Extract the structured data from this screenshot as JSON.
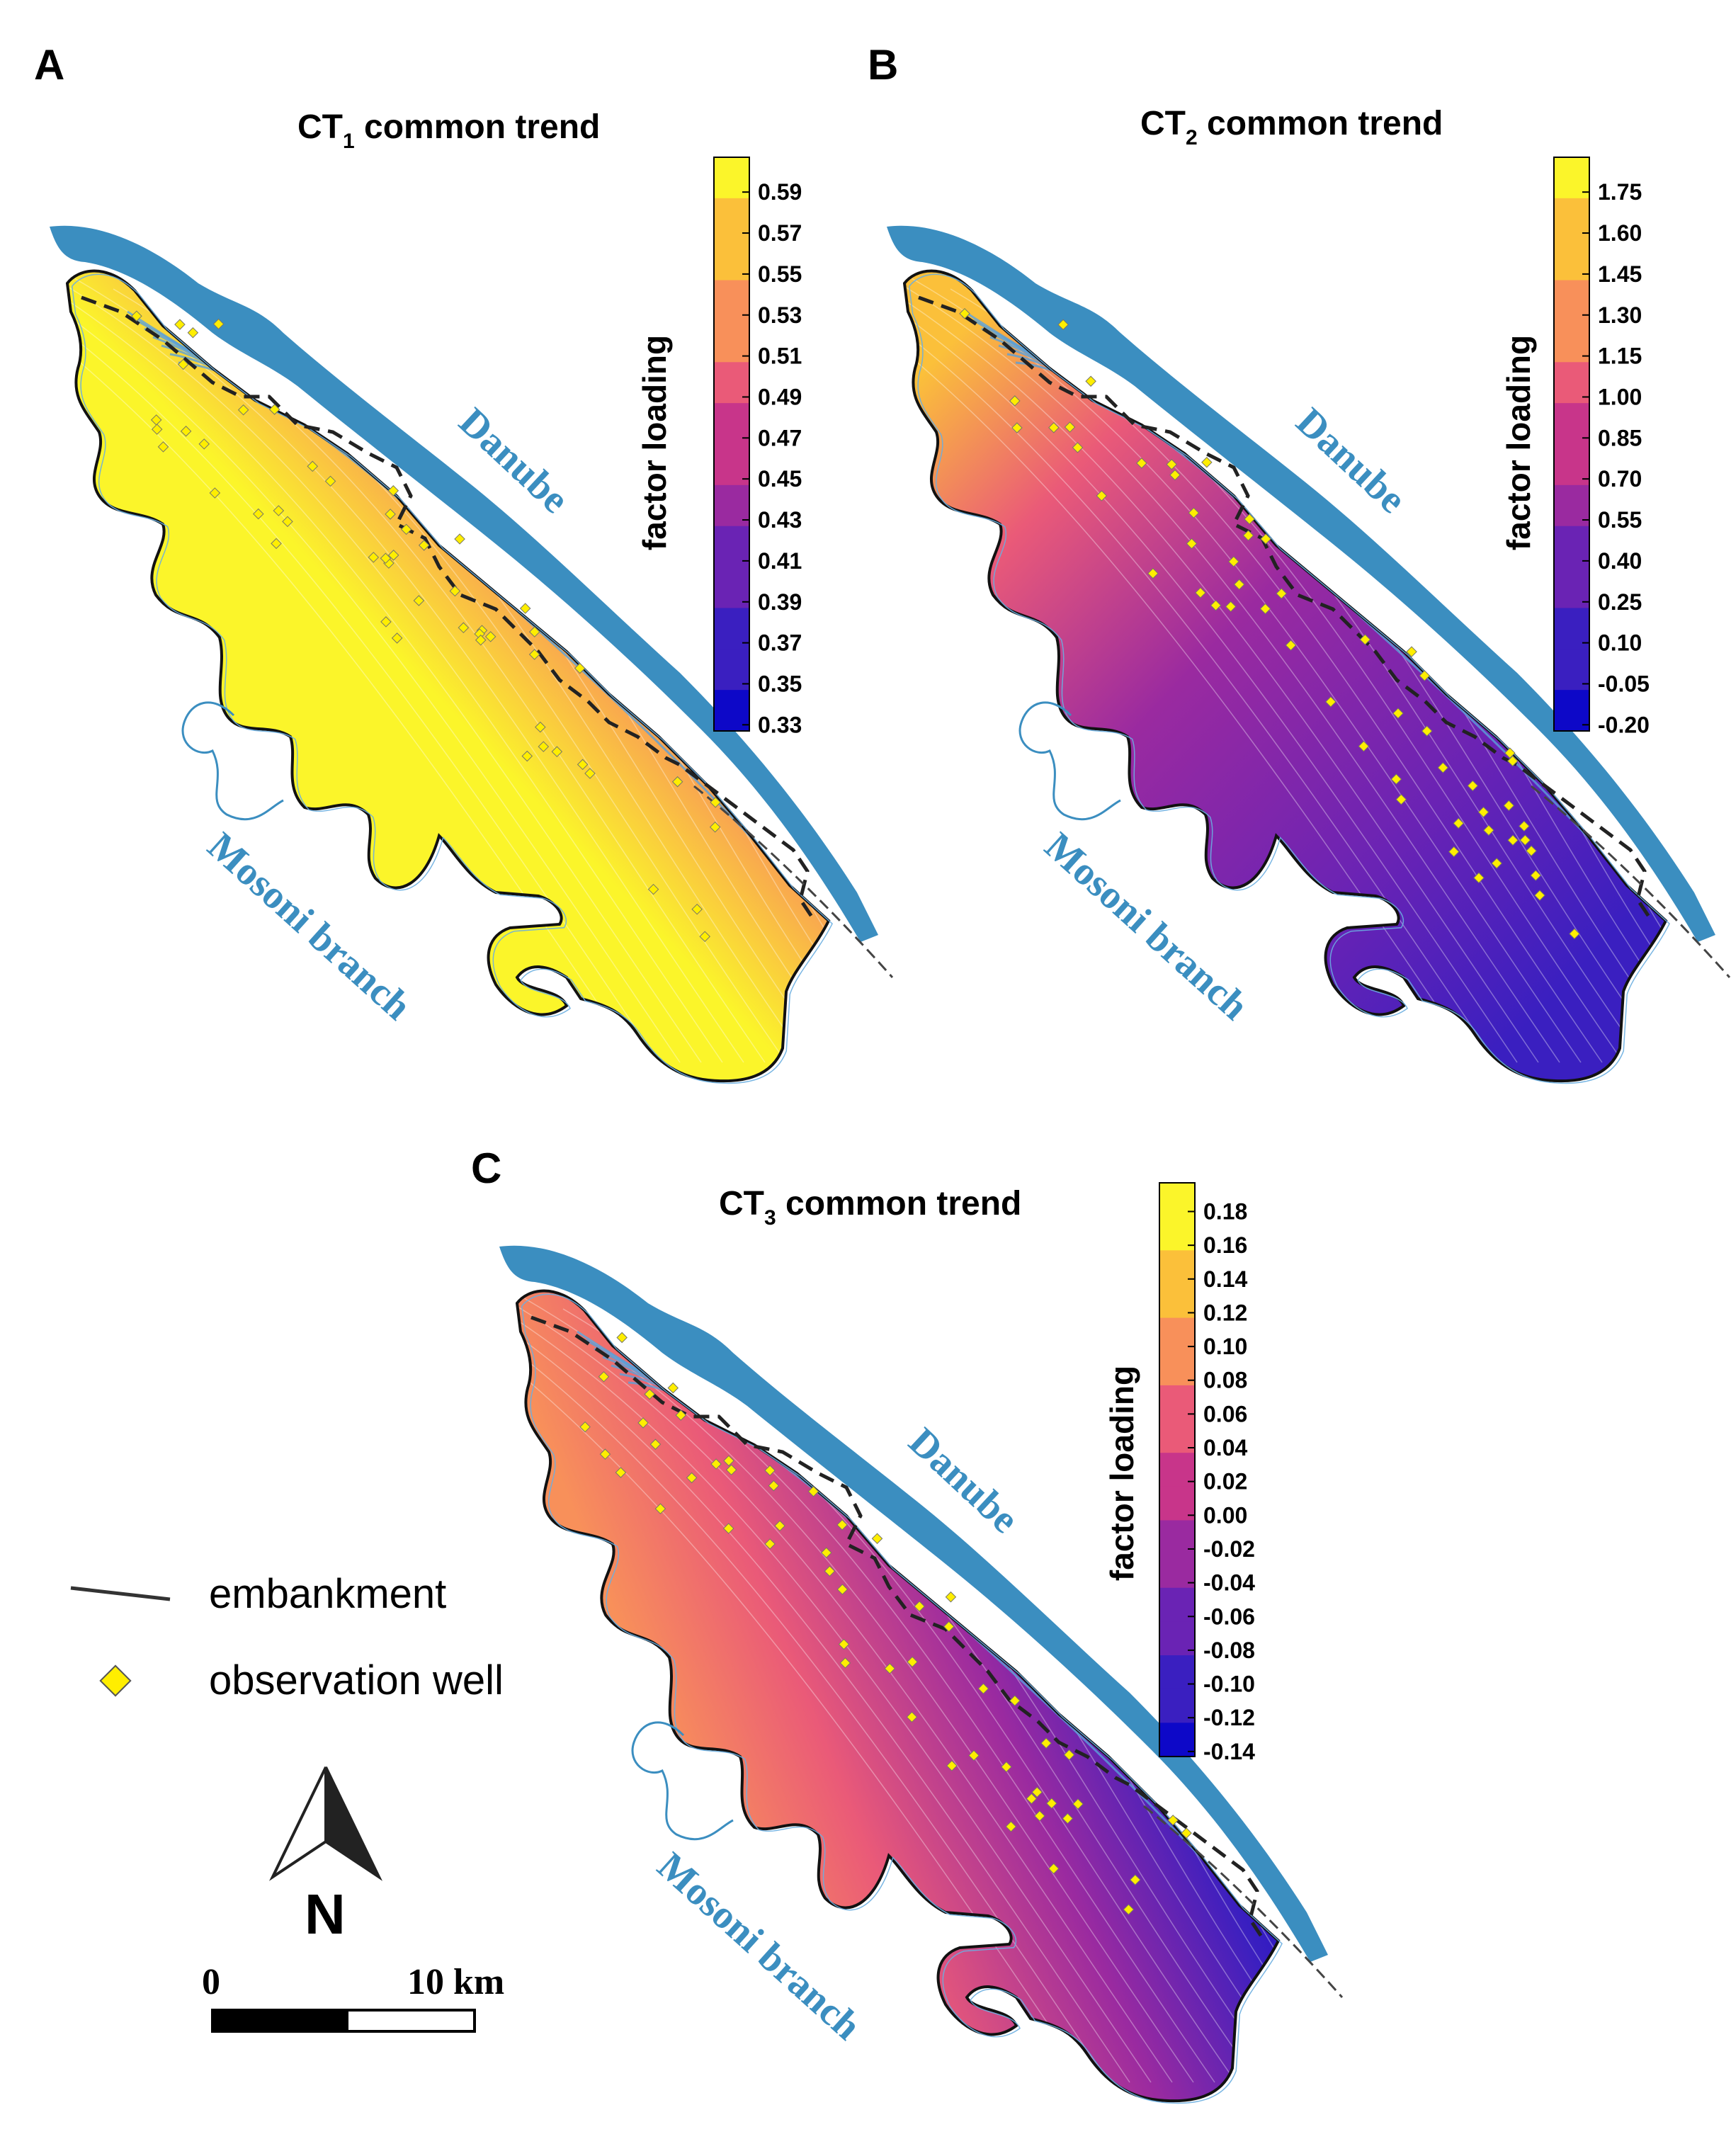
{
  "panels": [
    {
      "id": "A",
      "label": "A",
      "title_main": "CT",
      "title_sub": "1",
      "title_rest": " common trend",
      "colorbar_title": "factor loading",
      "ticks": [
        "0.59",
        "0.57",
        "0.55",
        "0.53",
        "0.51",
        "0.49",
        "0.47",
        "0.45",
        "0.43",
        "0.41",
        "0.39",
        "0.37",
        "0.35",
        "0.33"
      ],
      "scheme": "high-interior",
      "river_danube": "Danube",
      "river_mosoni": "Mosoni branch"
    },
    {
      "id": "B",
      "label": "B",
      "title_main": "CT",
      "title_sub": "2",
      "title_rest": " common trend",
      "colorbar_title": "factor loading",
      "ticks": [
        "1.75",
        "1.60",
        "1.45",
        "1.30",
        "1.15",
        "1.00",
        "0.85",
        "0.70",
        "0.55",
        "0.40",
        "0.25",
        "0.10",
        "-0.05",
        "-0.20"
      ],
      "scheme": "high-northwest",
      "river_danube": "Danube",
      "river_mosoni": "Mosoni branch"
    },
    {
      "id": "C",
      "label": "C",
      "title_main": "CT",
      "title_sub": "3",
      "title_rest": " common trend",
      "colorbar_title": "factor loading",
      "ticks": [
        "0.18",
        "0.16",
        "0.14",
        "0.12",
        "0.10",
        "0.08",
        "0.06",
        "0.04",
        "0.02",
        "0.00",
        "-0.02",
        "-0.04",
        "-0.06",
        "-0.08",
        "-0.10",
        "-0.12",
        "-0.14"
      ],
      "scheme": "high-southwest",
      "river_danube": "Danube",
      "river_mosoni": "Mosoni branch"
    }
  ],
  "legend": {
    "embankment": "embankment",
    "observation_well": "observation well"
  },
  "north_arrow": {
    "letter": "N"
  },
  "scale_bar": {
    "start": "0",
    "end": "10 km"
  },
  "colors": {
    "river": "#3b8ec0",
    "well": "#ffee00",
    "colormap": [
      "#0d08c8",
      "#3a1fc0",
      "#6a23b4",
      "#9a2aa0",
      "#c8358a",
      "#ea5a78",
      "#f8905a",
      "#fbc03a",
      "#fbf52a"
    ]
  }
}
